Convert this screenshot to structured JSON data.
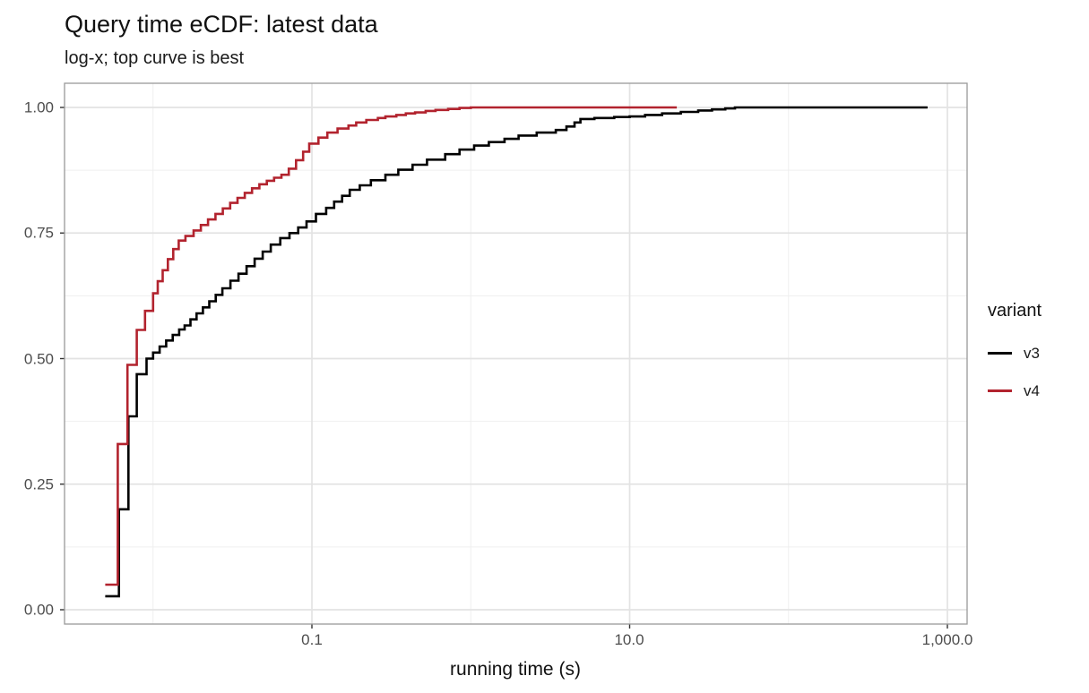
{
  "chart": {
    "title": "Query time eCDF: latest data",
    "subtitle": "log-x; top curve is best",
    "x_axis_label": "running time (s)",
    "legend_title": "variant"
  },
  "chart_data": {
    "type": "line",
    "variant": "ecdf-step",
    "title": "Query time eCDF: latest data",
    "subtitle": "log-x; top curve is best",
    "xlabel": "running time (s)",
    "ylabel": "",
    "x_scale": "log10",
    "grid": true,
    "legend_position": "right",
    "legend_title": "variant",
    "xlim": [
      0.0028,
      1350
    ],
    "ylim": [
      -0.03,
      1.05
    ],
    "x_tick_labels": [
      "0.1",
      "10.0",
      "1,000.0"
    ],
    "x_tick_values": [
      0.1,
      10,
      1000
    ],
    "x_minor_values": [
      0.01,
      1,
      100
    ],
    "y_tick_labels": [
      "1.00",
      "0.75",
      "0.50",
      "0.25",
      "0.00"
    ],
    "y_tick_values": [
      1,
      0.75,
      0.5,
      0.25,
      0
    ],
    "y_minor_values": [
      0.875,
      0.625,
      0.375,
      0.125
    ],
    "series": [
      {
        "name": "v3",
        "color": "#000000",
        "points": [
          [
            0.005,
            0.027
          ],
          [
            0.0061,
            0.2
          ],
          [
            0.007,
            0.385
          ],
          [
            0.0079,
            0.469
          ],
          [
            0.0091,
            0.5
          ],
          [
            0.01,
            0.512
          ],
          [
            0.011,
            0.524
          ],
          [
            0.0121,
            0.536
          ],
          [
            0.0133,
            0.547
          ],
          [
            0.0146,
            0.558
          ],
          [
            0.0158,
            0.566
          ],
          [
            0.0172,
            0.578
          ],
          [
            0.0188,
            0.59
          ],
          [
            0.0206,
            0.602
          ],
          [
            0.0226,
            0.614
          ],
          [
            0.0248,
            0.627
          ],
          [
            0.0273,
            0.64
          ],
          [
            0.0307,
            0.655
          ],
          [
            0.0345,
            0.669
          ],
          [
            0.0388,
            0.684
          ],
          [
            0.0436,
            0.699
          ],
          [
            0.049,
            0.713
          ],
          [
            0.0551,
            0.727
          ],
          [
            0.0632,
            0.74
          ],
          [
            0.0723,
            0.75
          ],
          [
            0.082,
            0.761
          ],
          [
            0.0925,
            0.773
          ],
          [
            0.106,
            0.788
          ],
          [
            0.123,
            0.8
          ],
          [
            0.138,
            0.8125
          ],
          [
            0.155,
            0.824
          ],
          [
            0.173,
            0.836
          ],
          [
            0.2,
            0.845
          ],
          [
            0.235,
            0.855
          ],
          [
            0.29,
            0.866
          ],
          [
            0.35,
            0.876
          ],
          [
            0.43,
            0.886
          ],
          [
            0.53,
            0.896
          ],
          [
            0.69,
            0.907
          ],
          [
            0.85,
            0.916
          ],
          [
            1.05,
            0.924
          ],
          [
            1.3,
            0.931
          ],
          [
            1.63,
            0.9375
          ],
          [
            2.0,
            0.944
          ],
          [
            2.6,
            0.95
          ],
          [
            3.43,
            0.955
          ],
          [
            4.0,
            0.962
          ],
          [
            4.5,
            0.97
          ],
          [
            4.9,
            0.977
          ],
          [
            6.0,
            0.979
          ],
          [
            8.0,
            0.981
          ],
          [
            10.0,
            0.982
          ],
          [
            12.5,
            0.985
          ],
          [
            16.0,
            0.988
          ],
          [
            21.0,
            0.991
          ],
          [
            27.0,
            0.994
          ],
          [
            33.0,
            0.996
          ],
          [
            40.0,
            0.998
          ],
          [
            46.0,
            1.0
          ],
          [
            750.0,
            1.0
          ]
        ]
      },
      {
        "name": "v4",
        "color": "#b2232e",
        "points": [
          [
            0.005,
            0.05
          ],
          [
            0.006,
            0.33
          ],
          [
            0.0069,
            0.4875
          ],
          [
            0.0079,
            0.557
          ],
          [
            0.0089,
            0.595
          ],
          [
            0.01,
            0.63
          ],
          [
            0.0107,
            0.654
          ],
          [
            0.0115,
            0.676
          ],
          [
            0.0124,
            0.698
          ],
          [
            0.0134,
            0.718
          ],
          [
            0.0145,
            0.735
          ],
          [
            0.016,
            0.744
          ],
          [
            0.018,
            0.755
          ],
          [
            0.02,
            0.766
          ],
          [
            0.0222,
            0.777
          ],
          [
            0.0247,
            0.788
          ],
          [
            0.0275,
            0.799
          ],
          [
            0.0306,
            0.81
          ],
          [
            0.034,
            0.82
          ],
          [
            0.0378,
            0.83
          ],
          [
            0.042,
            0.839
          ],
          [
            0.0467,
            0.847
          ],
          [
            0.052,
            0.854
          ],
          [
            0.0578,
            0.86
          ],
          [
            0.0643,
            0.866
          ],
          [
            0.0715,
            0.878
          ],
          [
            0.0795,
            0.895
          ],
          [
            0.088,
            0.912
          ],
          [
            0.0962,
            0.928
          ],
          [
            0.11,
            0.94
          ],
          [
            0.125,
            0.95
          ],
          [
            0.145,
            0.958
          ],
          [
            0.17,
            0.964
          ],
          [
            0.19,
            0.97
          ],
          [
            0.22,
            0.975
          ],
          [
            0.26,
            0.979
          ],
          [
            0.29,
            0.982
          ],
          [
            0.34,
            0.985
          ],
          [
            0.39,
            0.988
          ],
          [
            0.446,
            0.99
          ],
          [
            0.52,
            0.993
          ],
          [
            0.6,
            0.995
          ],
          [
            0.72,
            0.997
          ],
          [
            0.85,
            0.999
          ],
          [
            1.0,
            1.0
          ],
          [
            19.8,
            1.0
          ]
        ]
      }
    ]
  }
}
